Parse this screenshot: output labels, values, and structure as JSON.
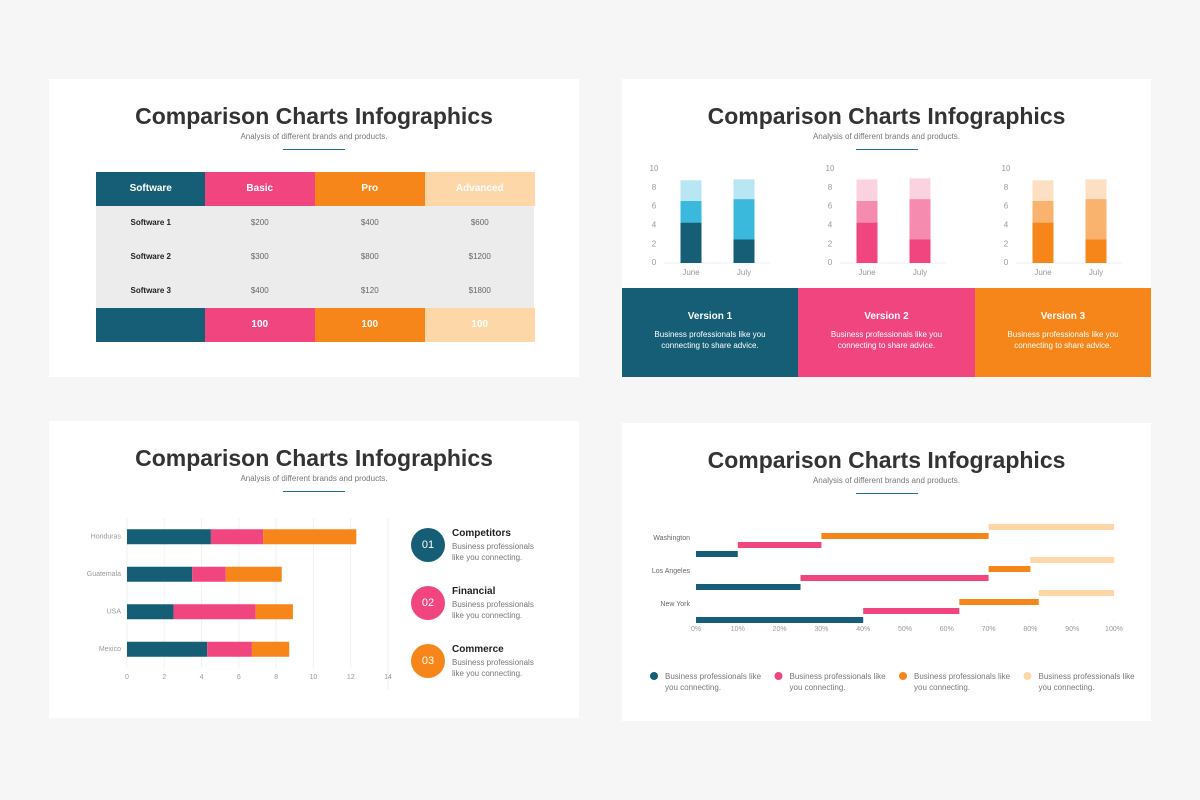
{
  "slides": [
    {
      "title": "Comparison Charts Infographics",
      "subtitle": "Analysis of different brands and products."
    },
    {
      "title": "Comparison Charts Infographics",
      "subtitle": "Analysis of different brands and products."
    },
    {
      "title": "Comparison Charts Infographics",
      "subtitle": "Analysis of different brands and products."
    },
    {
      "title": "Comparison Charts Infographics",
      "subtitle": "Analysis of different brands and products."
    }
  ],
  "table": {
    "header": [
      "Software",
      "Basic",
      "Pro",
      "Advanced"
    ],
    "rows": [
      [
        "Software 1",
        "$200",
        "$400",
        "$600"
      ],
      [
        "Software 2",
        "$300",
        "$800",
        "$1200"
      ],
      [
        "Software 3",
        "$400",
        "$120",
        "$1800"
      ]
    ],
    "footer": [
      "100",
      "100",
      "100"
    ]
  },
  "versions": [
    {
      "title": "Version 1",
      "text": "Business professionals like you connecting to share advice."
    },
    {
      "title": "Version 2",
      "text": "Business professionals like you connecting to share advice."
    },
    {
      "title": "Version 3",
      "text": "Business professionals like you connecting to share advice."
    }
  ],
  "features": [
    {
      "number": "01",
      "title": "Competitors",
      "text": "Business professionals like you connecting."
    },
    {
      "number": "02",
      "title": "Financial",
      "text": "Business professionals like you connecting."
    },
    {
      "number": "03",
      "title": "Commerce",
      "text": "Business professionals like you connecting."
    }
  ],
  "chart_data": [
    {
      "type": "bar",
      "stacked": true,
      "categories": [
        "June",
        "July"
      ],
      "series": [
        {
          "color": "#155e75",
          "values": [
            4.3,
            2.5
          ]
        },
        {
          "color": "#3bb9dc",
          "values": [
            2.3,
            4.3
          ]
        },
        {
          "color": "#b8e6f3",
          "values": [
            2.2,
            2.1
          ]
        }
      ],
      "ylim": [
        0,
        10
      ],
      "yticks": [
        0,
        2,
        4,
        6,
        8,
        10
      ]
    },
    {
      "type": "bar",
      "stacked": true,
      "categories": [
        "June",
        "July"
      ],
      "series": [
        {
          "color": "#f1457f",
          "values": [
            4.3,
            2.5
          ]
        },
        {
          "color": "#f68bb0",
          "values": [
            2.3,
            4.3
          ]
        },
        {
          "color": "#fbd3e0",
          "values": [
            2.3,
            2.2
          ]
        }
      ],
      "ylim": [
        0,
        10
      ],
      "yticks": [
        0,
        2,
        4,
        6,
        8,
        10
      ]
    },
    {
      "type": "bar",
      "stacked": true,
      "categories": [
        "June",
        "July"
      ],
      "series": [
        {
          "color": "#f6861a",
          "values": [
            4.3,
            2.5
          ]
        },
        {
          "color": "#f9b36f",
          "values": [
            2.3,
            4.3
          ]
        },
        {
          "color": "#fde0c3",
          "values": [
            2.2,
            2.1
          ]
        }
      ],
      "ylim": [
        0,
        10
      ],
      "yticks": [
        0,
        2,
        4,
        6,
        8,
        10
      ]
    },
    {
      "type": "bar",
      "orientation": "horizontal",
      "stacked": true,
      "grid": true,
      "categories": [
        "Honduras",
        "Guatemala",
        "USA",
        "Mexico"
      ],
      "series": [
        {
          "color": "#155e75",
          "values": [
            4.5,
            3.5,
            2.5,
            4.3
          ]
        },
        {
          "color": "#f1457f",
          "values": [
            2.8,
            1.8,
            4.4,
            2.4
          ]
        },
        {
          "color": "#f6861a",
          "values": [
            5.0,
            3.0,
            2.0,
            2.0
          ]
        }
      ],
      "xlim": [
        0,
        14
      ],
      "xticks": [
        0,
        2,
        4,
        6,
        8,
        10,
        12,
        14
      ]
    },
    {
      "type": "bar",
      "orientation": "horizontal",
      "stacked": true,
      "staggered": true,
      "legend": "bottom",
      "categories": [
        "Washington",
        "Los Angeles",
        "New York"
      ],
      "series": [
        {
          "name": "Business professionals like you connecting.",
          "color": "#155e75",
          "values": [
            10,
            25,
            40
          ]
        },
        {
          "name": "Business professionals like you connecting.",
          "color": "#f1457f",
          "values": [
            20,
            45,
            23
          ]
        },
        {
          "name": "Business professionals like you connecting.",
          "color": "#f6861a",
          "values": [
            40,
            10,
            19
          ]
        },
        {
          "name": "Business professionals like you connecting.",
          "color": "#fdd7a8",
          "values": [
            30,
            20,
            18
          ]
        }
      ],
      "xlim": [
        0,
        100
      ],
      "xticks": [
        {
          "value": 0,
          "label": "0%"
        },
        {
          "value": 10,
          "label": "10%"
        },
        {
          "value": 20,
          "label": "20%"
        },
        {
          "value": 30,
          "label": "30%"
        },
        {
          "value": 40,
          "label": "40%"
        },
        {
          "value": 50,
          "label": "50%"
        },
        {
          "value": 60,
          "label": "60%"
        },
        {
          "value": 70,
          "label": "70%"
        },
        {
          "value": 80,
          "label": "80%"
        },
        {
          "value": 90,
          "label": "90%"
        },
        {
          "value": 100,
          "label": "100%"
        }
      ]
    }
  ]
}
